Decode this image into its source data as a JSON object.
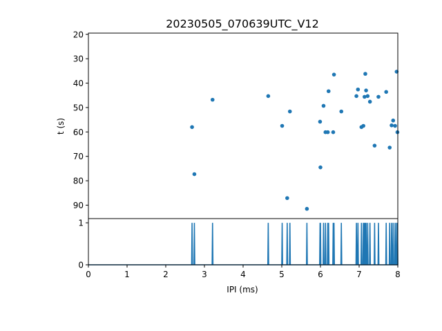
{
  "chart_data": [
    {
      "type": "scatter",
      "title": "20230505_070639UTC_V12",
      "xlabel": "",
      "ylabel": "t (s)",
      "xlim": [
        0,
        8
      ],
      "ylim": [
        95.5,
        19.5
      ],
      "y_inverted": true,
      "yticks": [
        20,
        30,
        40,
        50,
        60,
        70,
        80,
        90
      ],
      "color": "#1f77b4",
      "grid": false,
      "points": [
        {
          "x": 2.68,
          "y": 58.0
        },
        {
          "x": 2.74,
          "y": 77.3
        },
        {
          "x": 3.21,
          "y": 46.8
        },
        {
          "x": 4.65,
          "y": 45.3
        },
        {
          "x": 5.01,
          "y": 57.5
        },
        {
          "x": 5.14,
          "y": 87.1
        },
        {
          "x": 5.21,
          "y": 51.6
        },
        {
          "x": 5.65,
          "y": 91.5
        },
        {
          "x": 5.99,
          "y": 55.8
        },
        {
          "x": 6.0,
          "y": 74.5
        },
        {
          "x": 6.08,
          "y": 49.3
        },
        {
          "x": 6.13,
          "y": 60.1
        },
        {
          "x": 6.19,
          "y": 60.1
        },
        {
          "x": 6.21,
          "y": 43.3
        },
        {
          "x": 6.33,
          "y": 60.1
        },
        {
          "x": 6.35,
          "y": 36.5
        },
        {
          "x": 6.54,
          "y": 51.6
        },
        {
          "x": 6.93,
          "y": 45.3
        },
        {
          "x": 6.97,
          "y": 42.6
        },
        {
          "x": 7.06,
          "y": 58.0
        },
        {
          "x": 7.11,
          "y": 57.5
        },
        {
          "x": 7.14,
          "y": 45.6
        },
        {
          "x": 7.16,
          "y": 36.2
        },
        {
          "x": 7.18,
          "y": 43.0
        },
        {
          "x": 7.22,
          "y": 45.3
        },
        {
          "x": 7.28,
          "y": 47.6
        },
        {
          "x": 7.4,
          "y": 65.6
        },
        {
          "x": 7.5,
          "y": 45.6
        },
        {
          "x": 7.7,
          "y": 43.6
        },
        {
          "x": 7.79,
          "y": 66.4
        },
        {
          "x": 7.84,
          "y": 57.3
        },
        {
          "x": 7.88,
          "y": 55.3
        },
        {
          "x": 7.93,
          "y": 57.5
        },
        {
          "x": 7.97,
          "y": 35.3
        },
        {
          "x": 7.99,
          "y": 60.1
        }
      ]
    },
    {
      "type": "line",
      "title": "",
      "xlabel": "IPI (ms)",
      "ylabel": "",
      "xlim": [
        0,
        8
      ],
      "ylim": [
        0,
        1.1
      ],
      "xticks": [
        0,
        1,
        2,
        3,
        4,
        5,
        6,
        7,
        8
      ],
      "yticks": [
        0,
        1
      ],
      "color": "#1f77b4",
      "grid": false,
      "spikes_at": [
        2.68,
        2.74,
        3.21,
        4.65,
        5.01,
        5.14,
        5.21,
        5.65,
        5.99,
        6.0,
        6.08,
        6.13,
        6.19,
        6.21,
        6.33,
        6.35,
        6.54,
        6.93,
        6.97,
        7.06,
        7.11,
        7.14,
        7.16,
        7.18,
        7.22,
        7.28,
        7.4,
        7.5,
        7.7,
        7.79,
        7.84,
        7.88,
        7.93,
        7.97,
        7.99
      ]
    }
  ]
}
